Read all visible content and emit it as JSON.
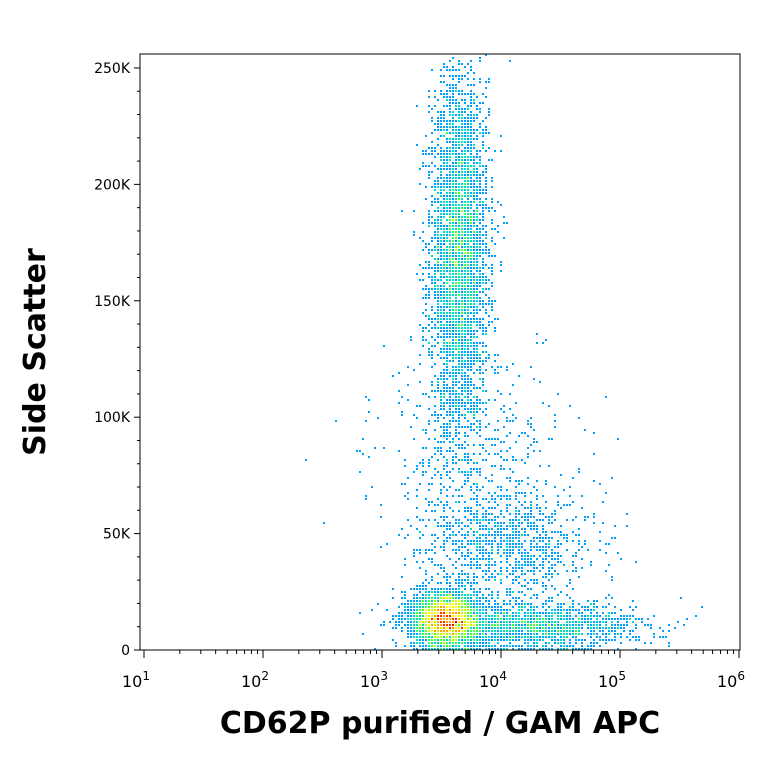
{
  "chart_data": {
    "type": "scatter",
    "subtype": "flow-cytometry density dot plot",
    "title": "",
    "xlabel": "CD62P purified / GAM APC",
    "ylabel": "Side Scatter",
    "x_scale": "log",
    "xlim": [
      3,
      110000
    ],
    "ylim": [
      0,
      256000
    ],
    "x_ticks": [
      {
        "value": 10,
        "base": "10",
        "exp": "1"
      },
      {
        "value": 100,
        "base": "10",
        "exp": "2"
      },
      {
        "value": 1000,
        "base": "10",
        "exp": "3"
      },
      {
        "value": 10000,
        "base": "10",
        "exp": "4"
      },
      {
        "value": 100000,
        "base": "10",
        "exp": "5"
      },
      {
        "value": 1000000,
        "base": "10",
        "exp": "6"
      }
    ],
    "y_ticks": [
      {
        "value": 0,
        "label": "0"
      },
      {
        "value": 50000,
        "label": "50K"
      },
      {
        "value": 100000,
        "label": "100K"
      },
      {
        "value": 150000,
        "label": "150K"
      },
      {
        "value": 200000,
        "label": "200K"
      },
      {
        "value": 250000,
        "label": "250K"
      }
    ],
    "grid": false,
    "legend": "none",
    "density_colormap": [
      "#0000ff",
      "#00a0ff",
      "#00e0c0",
      "#40ff40",
      "#c0ff00",
      "#ffff00",
      "#ffa000",
      "#ff3000",
      "#ff0000"
    ],
    "populations": [
      {
        "center_x": 4500,
        "center_y": 170000,
        "spread_log_x": 0.12,
        "spread_y": 38000,
        "points": 4200
      },
      {
        "center_x": 3500,
        "center_y": 13000,
        "spread_log_x": 0.14,
        "spread_y": 6000,
        "points": 3600
      },
      {
        "center_x": 18000,
        "center_y": 10000,
        "spread_log_x": 0.45,
        "spread_y": 5000,
        "points": 1800
      },
      {
        "center_x": 12000,
        "center_y": 45000,
        "spread_log_x": 0.35,
        "spread_y": 12000,
        "points": 900
      },
      {
        "center_x": 6000,
        "center_y": 80000,
        "spread_log_x": 0.4,
        "spread_y": 25000,
        "points": 500
      }
    ]
  }
}
